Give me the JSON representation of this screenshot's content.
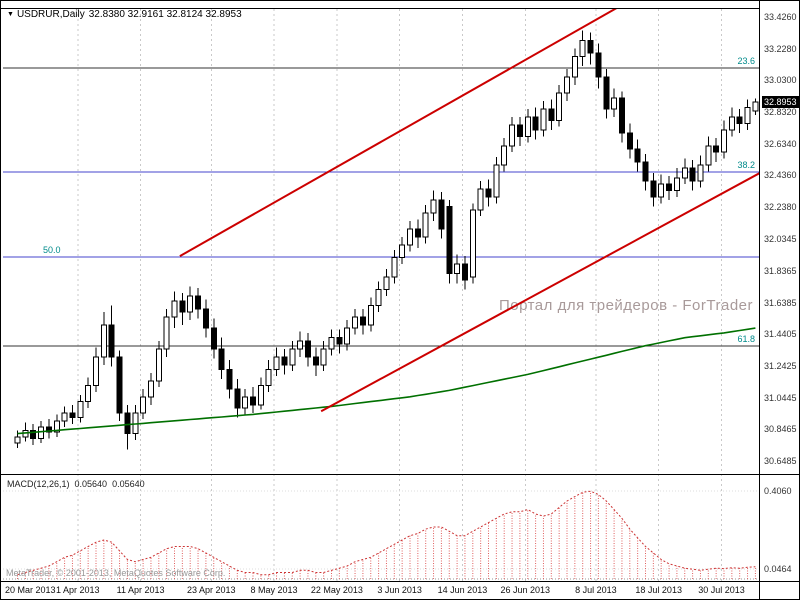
{
  "legend": {
    "symbol": "USDRUR,Daily",
    "ohlc": "32.8380 32.9161 32.8124 32.8953"
  },
  "watermark": "Портал для трейдеров - ForTrader",
  "copyright": "MetaTrader, © 2001-2013, MetaQuotes Software Corp.",
  "price_axis": {
    "current_price": "32.8953",
    "ticks": [
      {
        "text": "33.4260",
        "value": 33.426
      },
      {
        "text": "33.2280",
        "value": 33.228
      },
      {
        "text": "33.0300",
        "value": 33.03
      },
      {
        "text": "32.8320",
        "value": 32.832
      },
      {
        "text": "32.6340",
        "value": 32.634
      },
      {
        "text": "32.4360",
        "value": 32.436
      },
      {
        "text": "32.2380",
        "value": 32.238
      },
      {
        "text": "32.0345",
        "value": 32.0345
      },
      {
        "text": "31.8365",
        "value": 31.8365
      },
      {
        "text": "31.6385",
        "value": 31.6385
      },
      {
        "text": "31.4405",
        "value": 31.4405
      },
      {
        "text": "31.2425",
        "value": 31.2425
      },
      {
        "text": "31.0445",
        "value": 31.0445
      },
      {
        "text": "30.8465",
        "value": 30.8465
      },
      {
        "text": "30.6485",
        "value": 30.6485
      }
    ]
  },
  "fib_levels": [
    {
      "label": "23.6",
      "price": 33.107,
      "line_color": "#333333",
      "side": "right"
    },
    {
      "label": "38.2",
      "price": 32.456,
      "line_color": "#4444cc",
      "side": "right"
    },
    {
      "label": "50.0",
      "price": 31.925,
      "line_color": "#4444cc",
      "side": "left"
    },
    {
      "label": "61.8",
      "price": 31.368,
      "line_color": "#333333",
      "side": "right"
    }
  ],
  "time_axis": {
    "labels": [
      {
        "text": "20 Mar 2013",
        "index": 0
      },
      {
        "text": "1 Apr 2013",
        "index": 8
      },
      {
        "text": "11 Apr 2013",
        "index": 16
      },
      {
        "text": "23 Apr 2013",
        "index": 25
      },
      {
        "text": "8 May 2013",
        "index": 33
      },
      {
        "text": "22 May 2013",
        "index": 41
      },
      {
        "text": "3 Jun 2013",
        "index": 49
      },
      {
        "text": "14 Jun 2013",
        "index": 57
      },
      {
        "text": "26 Jun 2013",
        "index": 65
      },
      {
        "text": "8 Jul 2013",
        "index": 74
      },
      {
        "text": "18 Jul 2013",
        "index": 82
      },
      {
        "text": "30 Jul 2013",
        "index": 90
      }
    ]
  },
  "macd_panel": {
    "label": "MACD(12,26,1)",
    "value1": "0.05640",
    "value2": "0.05640",
    "axis_labels": [
      {
        "text": "0.4060",
        "value": 0.406
      },
      {
        "text": "0.0464",
        "value": 0.0464
      }
    ]
  },
  "colors": {
    "bull": "#ffffff",
    "bear": "#000000",
    "outline": "#000000",
    "ma": "#007000",
    "trendline": "#cc0000",
    "macd_bar": "#e06060",
    "macd_line": "#cc3434",
    "grid": "#c9c9c9",
    "fib_label": "#008b8b",
    "frame": "#000000"
  },
  "chart_data": {
    "type": "candlestick",
    "symbol": "USDRUR",
    "timeframe": "Daily",
    "title": "USDRUR,Daily",
    "ylim": [
      30.6485,
      33.426
    ],
    "last_ohlc": {
      "open": "32.8380",
      "high": "32.9161",
      "low": "32.8124",
      "close": "32.8953"
    },
    "ohlc": [
      [
        30.76,
        30.84,
        30.73,
        30.8
      ],
      [
        30.8,
        30.89,
        30.77,
        30.84
      ],
      [
        30.84,
        30.88,
        30.75,
        30.79
      ],
      [
        30.79,
        30.9,
        30.76,
        30.86
      ],
      [
        30.86,
        30.91,
        30.79,
        30.83
      ],
      [
        30.83,
        30.94,
        30.8,
        30.9
      ],
      [
        30.9,
        30.99,
        30.86,
        30.95
      ],
      [
        30.95,
        31.0,
        30.88,
        30.92
      ],
      [
        30.92,
        31.06,
        30.89,
        31.02
      ],
      [
        31.02,
        31.17,
        30.98,
        31.12
      ],
      [
        31.12,
        31.36,
        31.08,
        31.3
      ],
      [
        31.3,
        31.58,
        31.25,
        31.5
      ],
      [
        31.5,
        31.62,
        31.24,
        31.3
      ],
      [
        31.3,
        31.34,
        30.9,
        30.95
      ],
      [
        30.95,
        31.0,
        30.72,
        30.82
      ],
      [
        30.82,
        31.0,
        30.78,
        30.95
      ],
      [
        30.95,
        31.1,
        30.91,
        31.05
      ],
      [
        31.05,
        31.2,
        31.0,
        31.15
      ],
      [
        31.15,
        31.4,
        31.11,
        31.35
      ],
      [
        31.35,
        31.6,
        31.3,
        31.55
      ],
      [
        31.55,
        31.71,
        31.48,
        31.65
      ],
      [
        31.65,
        31.7,
        31.5,
        31.58
      ],
      [
        31.58,
        31.74,
        31.53,
        31.68
      ],
      [
        31.68,
        31.73,
        31.54,
        31.6
      ],
      [
        31.6,
        31.66,
        31.42,
        31.48
      ],
      [
        31.48,
        31.54,
        31.29,
        31.35
      ],
      [
        31.35,
        31.42,
        31.16,
        31.22
      ],
      [
        31.22,
        31.28,
        31.04,
        31.1
      ],
      [
        31.1,
        31.16,
        30.92,
        30.98
      ],
      [
        30.98,
        31.1,
        30.94,
        31.05
      ],
      [
        31.05,
        31.11,
        30.95,
        31.0
      ],
      [
        31.0,
        31.17,
        30.97,
        31.12
      ],
      [
        31.12,
        31.28,
        31.08,
        31.22
      ],
      [
        31.22,
        31.36,
        31.18,
        31.3
      ],
      [
        31.3,
        31.35,
        31.19,
        31.25
      ],
      [
        31.25,
        31.4,
        31.21,
        31.35
      ],
      [
        31.35,
        31.46,
        31.3,
        31.4
      ],
      [
        31.4,
        31.45,
        31.24,
        31.3
      ],
      [
        31.3,
        31.36,
        31.18,
        31.25
      ],
      [
        31.25,
        31.4,
        31.21,
        31.35
      ],
      [
        31.35,
        31.47,
        31.31,
        31.42
      ],
      [
        31.42,
        31.47,
        31.32,
        31.38
      ],
      [
        31.38,
        31.53,
        31.34,
        31.48
      ],
      [
        31.48,
        31.6,
        31.44,
        31.55
      ],
      [
        31.55,
        31.6,
        31.44,
        31.5
      ],
      [
        31.5,
        31.67,
        31.46,
        31.62
      ],
      [
        31.62,
        31.77,
        31.58,
        31.72
      ],
      [
        31.72,
        31.85,
        31.68,
        31.8
      ],
      [
        31.8,
        31.97,
        31.76,
        31.92
      ],
      [
        31.92,
        32.05,
        31.88,
        32.0
      ],
      [
        32.0,
        32.15,
        31.96,
        32.1
      ],
      [
        32.1,
        32.16,
        31.98,
        32.05
      ],
      [
        32.05,
        32.25,
        32.01,
        32.2
      ],
      [
        32.2,
        32.34,
        32.15,
        32.28
      ],
      [
        32.28,
        32.33,
        32.04,
        32.1
      ],
      [
        32.24,
        32.28,
        31.76,
        31.82
      ],
      [
        31.82,
        31.94,
        31.76,
        31.88
      ],
      [
        31.88,
        31.93,
        31.72,
        31.78
      ],
      [
        31.8,
        32.26,
        31.76,
        32.22
      ],
      [
        32.22,
        32.4,
        32.18,
        32.35
      ],
      [
        32.35,
        32.41,
        32.24,
        32.3
      ],
      [
        32.3,
        32.55,
        32.26,
        32.5
      ],
      [
        32.5,
        32.67,
        32.46,
        32.62
      ],
      [
        32.62,
        32.8,
        32.58,
        32.75
      ],
      [
        32.75,
        32.8,
        32.62,
        32.68
      ],
      [
        32.68,
        32.85,
        32.64,
        32.8
      ],
      [
        32.8,
        32.86,
        32.66,
        32.72
      ],
      [
        32.72,
        32.9,
        32.68,
        32.85
      ],
      [
        32.85,
        32.91,
        32.72,
        32.78
      ],
      [
        32.78,
        33.0,
        32.74,
        32.95
      ],
      [
        32.95,
        33.1,
        32.9,
        33.05
      ],
      [
        33.05,
        33.23,
        33.0,
        33.18
      ],
      [
        33.18,
        33.34,
        33.12,
        33.28
      ],
      [
        33.28,
        33.33,
        33.13,
        33.2
      ],
      [
        33.2,
        33.26,
        32.98,
        33.05
      ],
      [
        33.05,
        33.1,
        32.79,
        32.85
      ],
      [
        32.85,
        32.98,
        32.8,
        32.92
      ],
      [
        32.92,
        32.96,
        32.64,
        32.7
      ],
      [
        32.7,
        32.76,
        32.54,
        32.6
      ],
      [
        32.6,
        32.66,
        32.46,
        32.52
      ],
      [
        32.52,
        32.57,
        32.34,
        32.4
      ],
      [
        32.4,
        32.45,
        32.24,
        32.3
      ],
      [
        32.3,
        32.44,
        32.26,
        32.38
      ],
      [
        32.38,
        32.43,
        32.28,
        32.34
      ],
      [
        32.34,
        32.48,
        32.3,
        32.42
      ],
      [
        32.42,
        32.54,
        32.38,
        32.48
      ],
      [
        32.48,
        32.53,
        32.34,
        32.4
      ],
      [
        32.4,
        32.56,
        32.36,
        32.5
      ],
      [
        32.5,
        32.68,
        32.46,
        32.62
      ],
      [
        32.62,
        32.67,
        32.52,
        32.58
      ],
      [
        32.58,
        32.78,
        32.54,
        32.72
      ],
      [
        32.72,
        32.86,
        32.68,
        32.8
      ],
      [
        32.8,
        32.85,
        32.7,
        32.76
      ],
      [
        32.76,
        32.91,
        32.72,
        32.86
      ],
      [
        32.838,
        32.9161,
        32.8124,
        32.8953
      ]
    ],
    "ma_points": [
      [
        0,
        30.82
      ],
      [
        10,
        30.86
      ],
      [
        20,
        30.9
      ],
      [
        30,
        30.94
      ],
      [
        40,
        30.99
      ],
      [
        50,
        31.05
      ],
      [
        55,
        31.09
      ],
      [
        60,
        31.14
      ],
      [
        65,
        31.19
      ],
      [
        70,
        31.25
      ],
      [
        75,
        31.31
      ],
      [
        80,
        31.37
      ],
      [
        85,
        31.42
      ],
      [
        90,
        31.45
      ],
      [
        94,
        31.48
      ]
    ],
    "trendlines": [
      {
        "i1": 21,
        "p1": 31.93,
        "i2": 78,
        "p2": 33.52
      },
      {
        "i1": 39,
        "p1": 30.96,
        "i2": 96,
        "p2": 32.48
      }
    ],
    "macd": {
      "params": "12,26,1",
      "ylim": [
        0,
        0.406
      ],
      "values": [
        0.02,
        0.03,
        0.04,
        0.05,
        0.06,
        0.08,
        0.1,
        0.11,
        0.13,
        0.15,
        0.17,
        0.18,
        0.17,
        0.13,
        0.09,
        0.08,
        0.09,
        0.1,
        0.12,
        0.14,
        0.15,
        0.15,
        0.15,
        0.14,
        0.12,
        0.1,
        0.08,
        0.06,
        0.04,
        0.03,
        0.03,
        0.02,
        0.02,
        0.03,
        0.03,
        0.03,
        0.04,
        0.04,
        0.03,
        0.03,
        0.04,
        0.05,
        0.06,
        0.08,
        0.09,
        0.1,
        0.12,
        0.14,
        0.16,
        0.18,
        0.2,
        0.21,
        0.23,
        0.24,
        0.24,
        0.22,
        0.2,
        0.2,
        0.22,
        0.24,
        0.26,
        0.28,
        0.3,
        0.31,
        0.31,
        0.32,
        0.3,
        0.29,
        0.3,
        0.33,
        0.36,
        0.38,
        0.4,
        0.405,
        0.39,
        0.36,
        0.32,
        0.28,
        0.23,
        0.19,
        0.15,
        0.12,
        0.09,
        0.07,
        0.06,
        0.05,
        0.045,
        0.04,
        0.045,
        0.05,
        0.048,
        0.052,
        0.05,
        0.054,
        0.0564
      ]
    }
  }
}
